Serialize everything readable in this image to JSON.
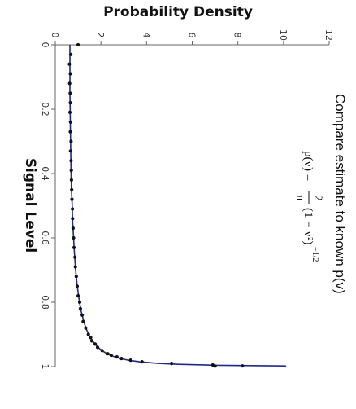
{
  "chart_data": {
    "type": "line",
    "orientation": "rotated-90-clockwise",
    "title": "",
    "xlabel": "Signal Level",
    "ylabel": "Probability Density",
    "xlim": [
      0,
      1
    ],
    "ylim": [
      0,
      12
    ],
    "x_ticks": [
      "0",
      "0.2",
      "0.4",
      "0.6",
      "0.8",
      "1"
    ],
    "y_ticks": [
      "0",
      "2",
      "4",
      "6",
      "8",
      "10",
      "12"
    ],
    "grid": false,
    "annotation": "Compare estimate to known p(v)",
    "formula": {
      "lhs": "p(v) =",
      "numerator": "2",
      "denominator": "π",
      "body": "(1 − v²)",
      "exponent": "−1/2"
    },
    "series": [
      {
        "role": "analytic-curve",
        "color": "#1f2a8c",
        "x": [
          0,
          0.05,
          0.1,
          0.15,
          0.2,
          0.25,
          0.3,
          0.35,
          0.4,
          0.45,
          0.5,
          0.55,
          0.6,
          0.65,
          0.7,
          0.75,
          0.8,
          0.83,
          0.86,
          0.88,
          0.9,
          0.92,
          0.94,
          0.95,
          0.96,
          0.97,
          0.975,
          0.98,
          0.985,
          0.99,
          0.993,
          0.996,
          0.998,
          1.0
        ],
        "y": [
          0.64,
          0.64,
          0.64,
          0.64,
          0.65,
          0.66,
          0.67,
          0.68,
          0.69,
          0.71,
          0.74,
          0.76,
          0.8,
          0.84,
          0.89,
          0.96,
          1.06,
          1.14,
          1.25,
          1.34,
          1.46,
          1.63,
          1.87,
          2.04,
          2.27,
          2.61,
          2.86,
          3.19,
          3.69,
          4.51,
          5.38,
          7.13,
          10.08,
          10.1
        ]
      },
      {
        "role": "estimate-points",
        "color": "#111111",
        "x": [
          0.0,
          0.03,
          0.06,
          0.09,
          0.12,
          0.15,
          0.18,
          0.21,
          0.24,
          0.27,
          0.3,
          0.33,
          0.36,
          0.39,
          0.42,
          0.45,
          0.48,
          0.51,
          0.54,
          0.57,
          0.6,
          0.63,
          0.66,
          0.69,
          0.72,
          0.75,
          0.78,
          0.8,
          0.82,
          0.84,
          0.86,
          0.88,
          0.9,
          0.91,
          0.92,
          0.93,
          0.94,
          0.95,
          0.96,
          0.965,
          0.97,
          0.975,
          0.98,
          0.985,
          0.99,
          0.995
        ],
        "y": [
          1.0,
          0.68,
          0.62,
          0.66,
          0.63,
          0.65,
          0.66,
          0.64,
          0.67,
          0.66,
          0.69,
          0.67,
          0.69,
          0.7,
          0.71,
          0.72,
          0.73,
          0.75,
          0.76,
          0.78,
          0.8,
          0.82,
          0.86,
          0.88,
          0.92,
          0.96,
          1.0,
          1.07,
          1.1,
          1.18,
          1.22,
          1.33,
          1.45,
          1.55,
          1.6,
          1.75,
          1.85,
          2.05,
          2.3,
          2.45,
          2.7,
          2.9,
          3.3,
          3.8,
          5.1,
          6.9
        ]
      },
      {
        "role": "estimate-outliers",
        "color": "#111111",
        "x": [
          0.998,
          0.9985
        ],
        "y": [
          8.2,
          7.0
        ]
      }
    ]
  }
}
